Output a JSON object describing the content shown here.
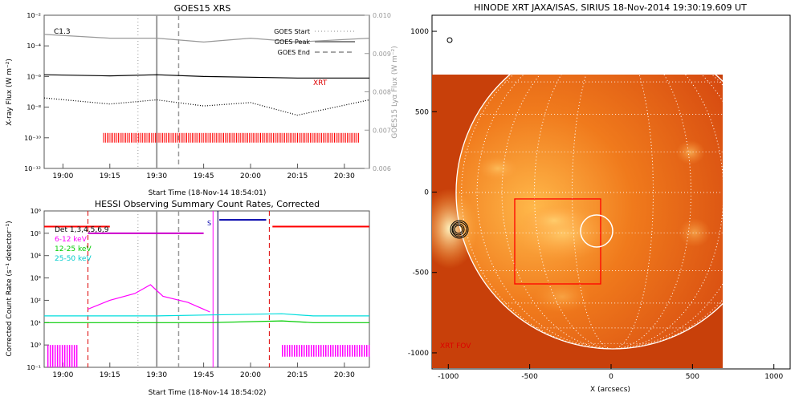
{
  "goes": {
    "title": "GOES15 XRS",
    "flare_class": "C1.3",
    "y_label_left": "X-ray Flux (W m⁻²)",
    "y_label_right": "GOES15 Lyα Flux (W m⁻²)",
    "x_label": "Start Time (18-Nov-14 18:54:01)",
    "x_ticks": [
      "19:00",
      "19:15",
      "19:30",
      "19:45",
      "20:00",
      "20:15",
      "20:30"
    ],
    "y_ticks_left": [
      "10⁻¹²",
      "10⁻¹⁰",
      "10⁻⁸",
      "10⁻⁶",
      "10⁻⁴",
      "10⁻²"
    ],
    "y_ticks_right": [
      "0.006",
      "0.007",
      "0.008",
      "0.009",
      "0.010"
    ],
    "legend": [
      "GOES Start",
      "GOES Peak",
      "GOES End"
    ],
    "xrt_label": "XRT"
  },
  "hessi": {
    "title": "HESSI Observing Summary Count Rates, Corrected",
    "y_label": "Corrected Count Rate (s⁻¹ detector⁻¹)",
    "x_label": "Start Time (18-Nov-14 18:54:02)",
    "x_ticks": [
      "19:00",
      "19:15",
      "19:30",
      "19:45",
      "20:00",
      "20:15",
      "20:30"
    ],
    "y_ticks": [
      "10⁻¹",
      "10⁰",
      "10¹",
      "10²",
      "10³",
      "10⁴",
      "10⁵",
      "10⁶"
    ],
    "legend": [
      {
        "label": "Det 1,3,4,5,6,9",
        "color": "#000000"
      },
      {
        "label": "6-12 keV",
        "color": "#ff00ff"
      },
      {
        "label": "12-25 keV",
        "color": "#00cc00"
      },
      {
        "label": "25-50 keV",
        "color": "#00dddd"
      }
    ],
    "s_marker": "S"
  },
  "xrt": {
    "title": "HINODE XRT JAXA/ISAS, SIRIUS 18-Nov-2014 19:30:19.609 UT",
    "x_label": "X (arcsecs)",
    "x_ticks": [
      "-1000",
      "-500",
      "0",
      "500",
      "1000"
    ],
    "y_ticks": [
      "1000",
      "500",
      "0",
      "-500",
      "-1000"
    ],
    "fov_label": "XRT FOV"
  },
  "chart_data": [
    {
      "type": "line",
      "title": "GOES15 XRS",
      "xlabel": "Start Time (18-Nov-14 18:54:01)",
      "ylabel": "X-ray Flux (W m⁻²)",
      "ylabel_right": "GOES15 Lyα Flux (W m⁻²)",
      "yscale": "log",
      "ylim": [
        1e-12,
        0.01
      ],
      "ylim_right": [
        0.006,
        0.01
      ],
      "xlim": [
        "18:54",
        "20:38"
      ],
      "annotation": "C1.3",
      "event_lines": {
        "GOES Start": "19:24",
        "GOES Peak": "19:30",
        "GOES End": "19:37"
      },
      "series": [
        {
          "name": "GOES Lyα (right axis)",
          "style": "gray solid",
          "x": [
            "18:54",
            "19:15",
            "19:30",
            "19:45",
            "20:00",
            "20:15",
            "20:38"
          ],
          "y": [
            0.0095,
            0.0094,
            0.0094,
            0.0093,
            0.0094,
            0.0093,
            0.0094
          ]
        },
        {
          "style": "black solid",
          "x": [
            "18:54",
            "19:15",
            "19:30",
            "19:45",
            "20:00",
            "20:15",
            "20:38"
          ],
          "y": [
            1.3e-06,
            1.1e-06,
            1.3e-06,
            1e-06,
            9e-07,
            8e-07,
            8e-07
          ]
        },
        {
          "style": "black dotted",
          "x": [
            "18:54",
            "19:15",
            "19:30",
            "19:45",
            "20:00",
            "20:15",
            "20:38"
          ],
          "y": [
            4e-08,
            1.6e-08,
            3e-08,
            1.2e-08,
            2e-08,
            3e-09,
            3e-08
          ]
        }
      ],
      "xrt_observations": {
        "label": "XRT",
        "from": "19:13",
        "to": "20:35",
        "level": 1e-10
      }
    },
    {
      "type": "line",
      "title": "HESSI Observing Summary Count Rates, Corrected",
      "xlabel": "Start Time (18-Nov-14 18:54:02)",
      "ylabel": "Corrected Count Rate (s⁻¹ detector⁻¹)",
      "yscale": "log",
      "ylim": [
        0.1,
        1000000.0
      ],
      "xlim": [
        "18:54",
        "20:38"
      ],
      "series": [
        {
          "name": "6-12 keV",
          "color": "#ff00ff",
          "x": [
            "19:08",
            "19:15",
            "19:23",
            "19:28",
            "19:32",
            "19:40",
            "19:47"
          ],
          "y": [
            40,
            100,
            200,
            500,
            150,
            80,
            30
          ]
        },
        {
          "name": "12-25 keV",
          "color": "#00cc00",
          "x": [
            "18:54",
            "19:15",
            "19:30",
            "19:47",
            "20:10",
            "20:20",
            "20:38"
          ],
          "y": [
            10,
            10,
            10,
            10,
            12,
            10,
            10
          ]
        },
        {
          "name": "25-50 keV",
          "color": "#00dddd",
          "x": [
            "18:54",
            "19:15",
            "19:30",
            "19:47",
            "20:10",
            "20:20",
            "20:38"
          ],
          "y": [
            20,
            20,
            20,
            22,
            25,
            20,
            20
          ]
        }
      ]
    },
    {
      "type": "heatmap",
      "title": "HINODE XRT JAXA/ISAS, SIRIUS 18-Nov-2014 19:30:19.609 UT",
      "xlabel": "X (arcsecs)",
      "xlim": [
        -1100,
        1100
      ],
      "ylim": [
        -1100,
        1100
      ],
      "fov_label": "XRT FOV"
    }
  ]
}
